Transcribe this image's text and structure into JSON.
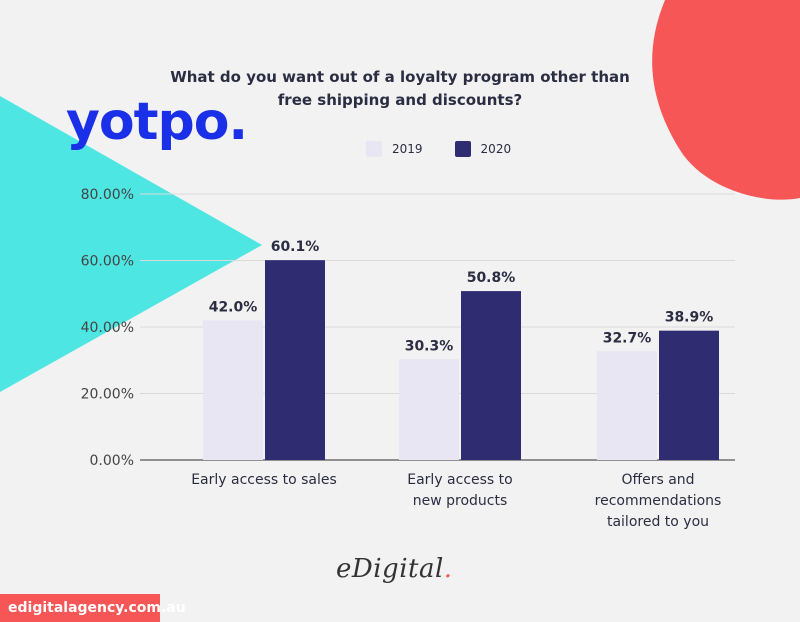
{
  "logo_text": "yotpo.",
  "brand": {
    "name": "eDigital",
    "dot": "."
  },
  "footer_url": "edigitalagency.com.au",
  "colors": {
    "2019": "#e8e6f3",
    "2020": "#302c72",
    "accent_coral": "#f65656",
    "accent_cyan": "#4de6e3",
    "logo_blue": "#1a2fe8"
  },
  "chart_data": {
    "type": "bar",
    "title": [
      "What do you want out of a loyalty program other than",
      "free shipping and discounts?"
    ],
    "categories": [
      [
        "Early access to sales"
      ],
      [
        "Early access to",
        "new products"
      ],
      [
        "Offers and",
        "recommendations",
        "tailored to you"
      ]
    ],
    "series": [
      {
        "name": "2019",
        "values": [
          42.0,
          30.3,
          32.7
        ],
        "labels": [
          "42.0%",
          "30.3%",
          "32.7%"
        ]
      },
      {
        "name": "2020",
        "values": [
          60.1,
          50.8,
          38.9
        ],
        "labels": [
          "60.1%",
          "50.8%",
          "38.9%"
        ]
      }
    ],
    "yticks": [
      "0.00%",
      "20.00%",
      "40.00%",
      "60.00%",
      "80.00%"
    ],
    "ylim": [
      0,
      80
    ],
    "legend_position": "top-center",
    "grid": true
  }
}
